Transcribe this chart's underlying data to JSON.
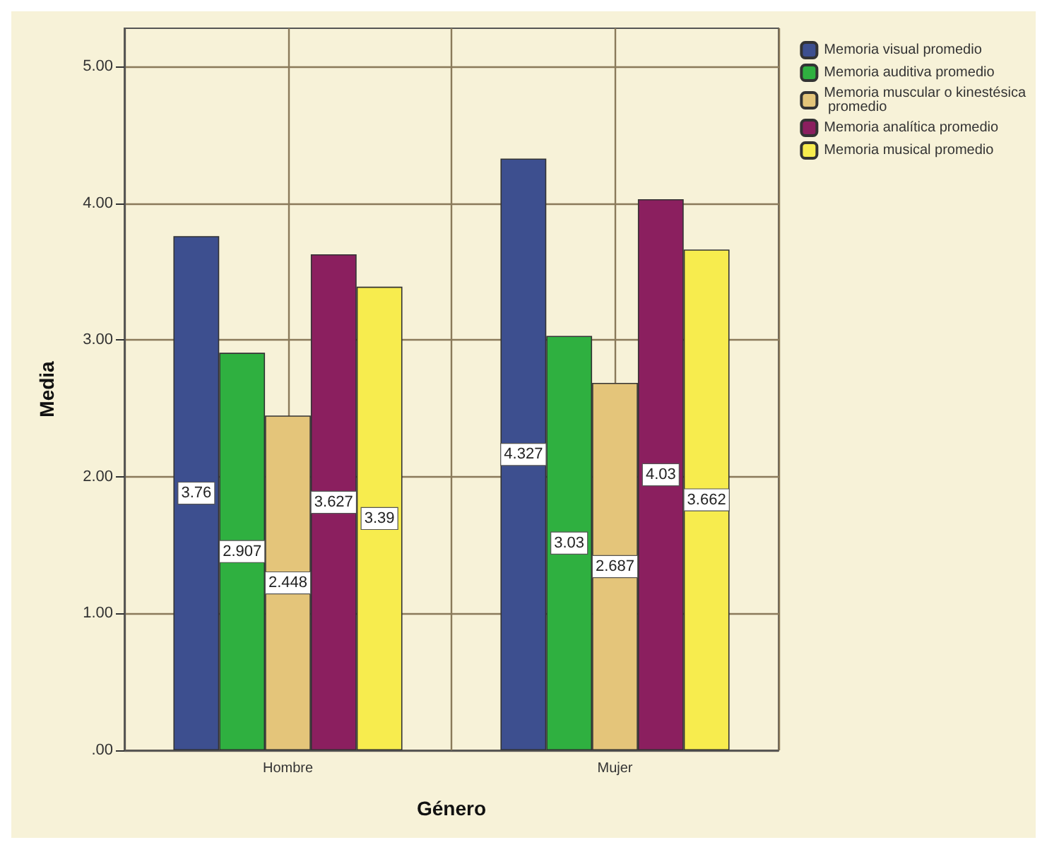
{
  "chart_data": {
    "type": "bar",
    "xlabel": "Género",
    "ylabel": "Media",
    "categories": [
      "Hombre",
      "Mujer"
    ],
    "series": [
      {
        "name": "Memoria visual promedio",
        "color": "#3d4f8f",
        "values": [
          3.76,
          4.327
        ]
      },
      {
        "name": "Memoria auditiva promedio",
        "color": "#2fb040",
        "values": [
          2.907,
          3.03
        ]
      },
      {
        "name": "Memoria muscular o kinestésica promedio",
        "color": "#e4c57a",
        "values": [
          2.448,
          2.687
        ]
      },
      {
        "name": "Memoria analítica promedio",
        "color": "#8b1f5f",
        "values": [
          3.627,
          4.03
        ]
      },
      {
        "name": "Memoria musical promedio",
        "color": "#f7ec4e",
        "values": [
          3.39,
          3.662
        ]
      }
    ],
    "ylim": [
      0,
      5.28
    ],
    "yticks": [
      {
        "value": 0,
        "label": ".00"
      },
      {
        "value": 1,
        "label": "1.00"
      },
      {
        "value": 2,
        "label": "2.00"
      },
      {
        "value": 3,
        "label": "3.00"
      },
      {
        "value": 4,
        "label": "4.00"
      },
      {
        "value": 5,
        "label": "5.00"
      }
    ],
    "grid": true,
    "legend": "top right",
    "data_labels": true
  }
}
